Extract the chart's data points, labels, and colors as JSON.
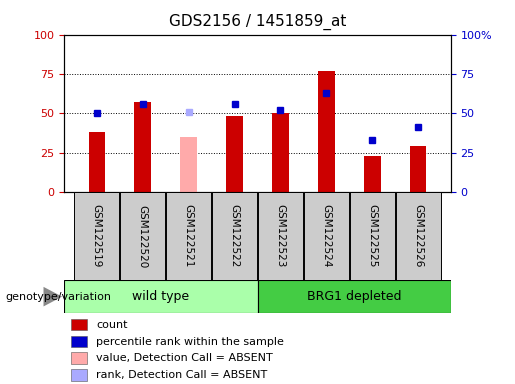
{
  "title": "GDS2156 / 1451859_at",
  "samples": [
    "GSM122519",
    "GSM122520",
    "GSM122521",
    "GSM122522",
    "GSM122523",
    "GSM122524",
    "GSM122525",
    "GSM122526"
  ],
  "bar_heights": [
    38,
    57,
    35,
    48,
    50,
    77,
    23,
    29
  ],
  "bar_colors": [
    "#cc0000",
    "#cc0000",
    "#ffaaaa",
    "#cc0000",
    "#cc0000",
    "#cc0000",
    "#cc0000",
    "#cc0000"
  ],
  "dot_values": [
    50,
    56,
    51,
    56,
    52,
    63,
    33,
    41
  ],
  "dot_colors": [
    "#0000cc",
    "#0000cc",
    "#aaaaff",
    "#0000cc",
    "#0000cc",
    "#0000cc",
    "#0000cc",
    "#0000cc"
  ],
  "groups": [
    {
      "label": "wild type",
      "span": [
        0,
        4
      ],
      "color": "#aaffaa"
    },
    {
      "label": "BRG1 depleted",
      "span": [
        4,
        8
      ],
      "color": "#44cc44"
    }
  ],
  "ylim": [
    0,
    100
  ],
  "yticks": [
    0,
    25,
    50,
    75,
    100
  ],
  "genotype_label": "genotype/variation",
  "legend_items": [
    {
      "label": "count",
      "color": "#cc0000"
    },
    {
      "label": "percentile rank within the sample",
      "color": "#0000cc"
    },
    {
      "label": "value, Detection Call = ABSENT",
      "color": "#ffaaaa"
    },
    {
      "label": "rank, Detection Call = ABSENT",
      "color": "#aaaaff"
    }
  ],
  "bg_color": "#ffffff",
  "tick_area_bg": "#cccccc",
  "bar_width": 0.35,
  "right_ytick_labels": [
    "0",
    "25",
    "50",
    "75",
    "100%"
  ]
}
